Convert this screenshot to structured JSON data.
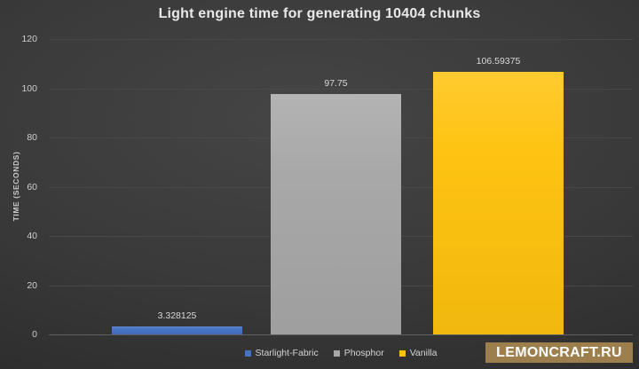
{
  "title": "Light engine time for generating 10404 chunks",
  "y_axis": {
    "title": "TIME (SECONDS)"
  },
  "chart_data": {
    "type": "bar",
    "categories": [
      "Starlight-Fabric",
      "Phosphor",
      "Vanilla"
    ],
    "values": [
      3.328125,
      97.75,
      106.59375
    ],
    "value_labels": [
      "3.328125",
      "97.75",
      "106.59375"
    ],
    "colors": [
      "#4472c4",
      "#a7a7a7",
      "#fec20e"
    ],
    "title": "Light engine time for generating 10404 chunks",
    "xlabel": "",
    "ylabel": "TIME (SECONDS)",
    "ylim": [
      0,
      120
    ],
    "ytick_step": 20,
    "grid": true,
    "legend_position": "bottom"
  },
  "legend": {
    "items": [
      {
        "label": "Starlight-Fabric",
        "color": "#4472c4"
      },
      {
        "label": "Phosphor",
        "color": "#a7a7a7"
      },
      {
        "label": "Vanilla",
        "color": "#fec20e"
      }
    ]
  },
  "watermark": {
    "text": "LEMONCRAFT.RU",
    "background": "#9d7f4e",
    "text_color": "#ffffff"
  }
}
